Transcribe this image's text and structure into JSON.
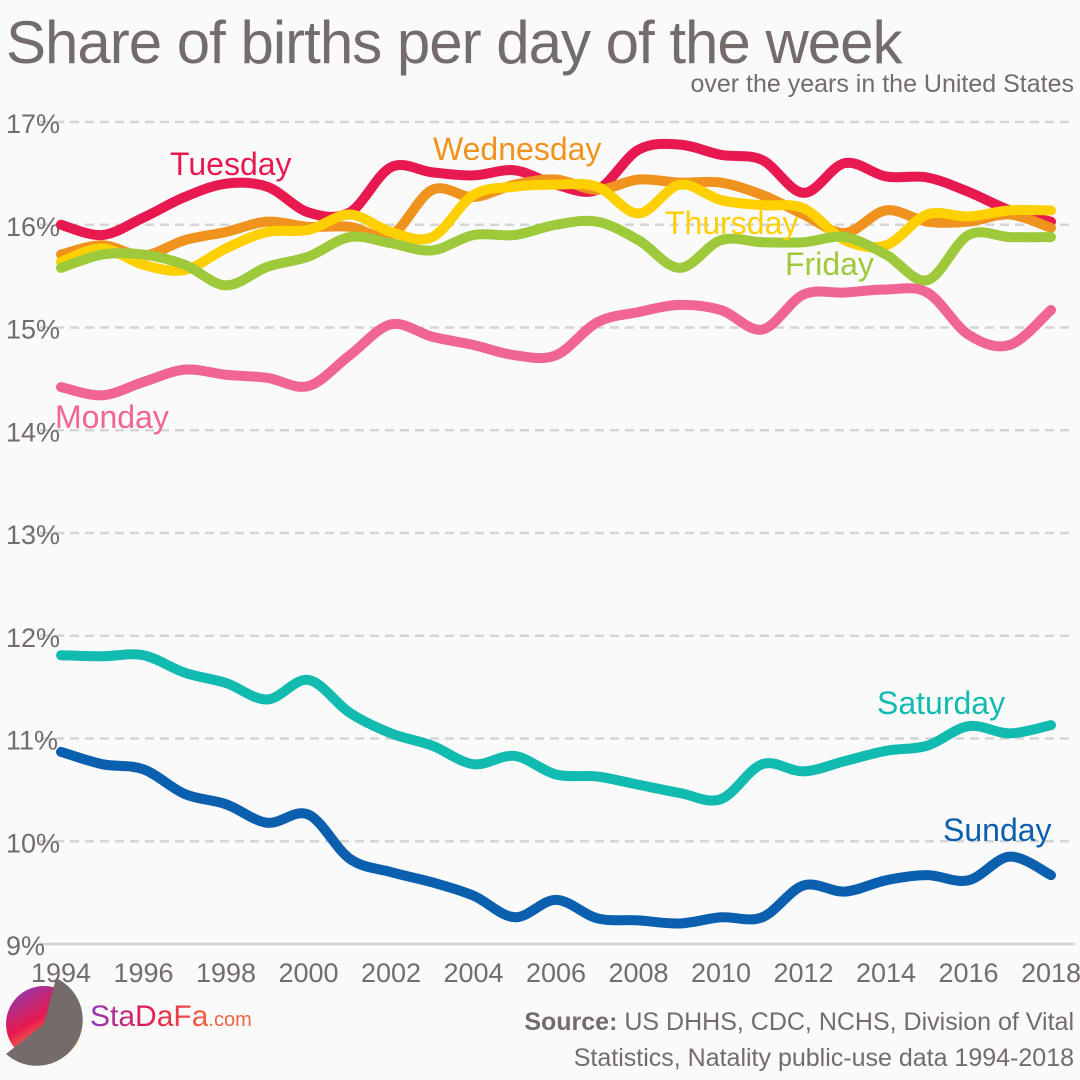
{
  "title": "Share of births per day of the week",
  "subtitle": "over the years in the United States",
  "brand": {
    "name": "StaDaFa",
    "suffix": ".com"
  },
  "source": {
    "label": "Source:",
    "line1": "US DHHS, CDC, NCHS, Division of Vital",
    "line2": "Statistics, Natality public-use data 1994-2018"
  },
  "chart_data": {
    "type": "line",
    "title": "Share of births per day of the week",
    "subtitle": "over the years in the United States",
    "xlabel": "",
    "ylabel": "",
    "x": [
      1994,
      1995,
      1996,
      1997,
      1998,
      1999,
      2000,
      2001,
      2002,
      2003,
      2004,
      2005,
      2006,
      2007,
      2008,
      2009,
      2010,
      2011,
      2012,
      2013,
      2014,
      2015,
      2016,
      2017,
      2018
    ],
    "x_ticks": [
      "1994",
      "1996",
      "1998",
      "2000",
      "2002",
      "2004",
      "2006",
      "2008",
      "2010",
      "2012",
      "2014",
      "2016",
      "2018"
    ],
    "y_ticks": [
      "9%",
      "10%",
      "11%",
      "12%",
      "13%",
      "14%",
      "15%",
      "16%",
      "17%"
    ],
    "ylim": [
      9,
      17
    ],
    "grid": "horizontal dashed",
    "legend": "inline labels",
    "series": [
      {
        "name": "Tuesday",
        "color": "#e8194f",
        "values": [
          16.0,
          15.9,
          16.07,
          16.27,
          16.4,
          16.37,
          16.12,
          16.12,
          16.56,
          16.51,
          16.48,
          16.53,
          16.39,
          16.34,
          16.73,
          16.78,
          16.68,
          16.63,
          16.31,
          16.6,
          16.47,
          16.46,
          16.32,
          16.14,
          16.03
        ]
      },
      {
        "name": "Wednesday",
        "color": "#f0931e",
        "values": [
          15.71,
          15.8,
          15.7,
          15.85,
          15.93,
          16.03,
          15.98,
          15.98,
          15.9,
          16.34,
          16.27,
          16.39,
          16.44,
          16.34,
          16.44,
          16.41,
          16.41,
          16.29,
          16.1,
          15.92,
          16.14,
          16.03,
          16.03,
          16.1,
          15.97
        ]
      },
      {
        "name": "Thursday",
        "color": "#ffd000",
        "values": [
          15.64,
          15.77,
          15.61,
          15.56,
          15.77,
          15.93,
          15.95,
          16.1,
          15.93,
          15.88,
          16.29,
          16.37,
          16.39,
          16.37,
          16.11,
          16.39,
          16.24,
          16.19,
          16.16,
          15.85,
          15.8,
          16.1,
          16.08,
          16.14,
          16.14
        ]
      },
      {
        "name": "Friday",
        "color": "#9dc93a",
        "values": [
          15.58,
          15.71,
          15.71,
          15.61,
          15.41,
          15.59,
          15.69,
          15.88,
          15.82,
          15.75,
          15.9,
          15.9,
          16.0,
          16.03,
          15.85,
          15.58,
          15.85,
          15.83,
          15.83,
          15.88,
          15.71,
          15.46,
          15.9,
          15.88,
          15.88
        ]
      },
      {
        "name": "Monday",
        "color": "#f06496",
        "values": [
          14.42,
          14.34,
          14.47,
          14.59,
          14.54,
          14.51,
          14.43,
          14.73,
          15.03,
          14.91,
          14.83,
          14.73,
          14.73,
          15.05,
          15.15,
          15.22,
          15.17,
          14.98,
          15.32,
          15.34,
          15.37,
          15.34,
          14.93,
          14.83,
          15.17
        ]
      },
      {
        "name": "Saturday",
        "color": "#12bbb0",
        "values": [
          11.81,
          11.8,
          11.81,
          11.64,
          11.54,
          11.38,
          11.57,
          11.25,
          11.05,
          10.93,
          10.75,
          10.83,
          10.65,
          10.63,
          10.55,
          10.47,
          10.41,
          10.75,
          10.68,
          10.78,
          10.88,
          10.93,
          11.12,
          11.05,
          11.13
        ]
      },
      {
        "name": "Sunday",
        "color": "#0a5fae",
        "values": [
          10.87,
          10.75,
          10.7,
          10.46,
          10.36,
          10.18,
          10.26,
          9.83,
          9.7,
          9.6,
          9.47,
          9.26,
          9.43,
          9.25,
          9.23,
          9.2,
          9.26,
          9.26,
          9.57,
          9.51,
          9.62,
          9.67,
          9.62,
          9.85,
          9.67
        ]
      }
    ]
  }
}
